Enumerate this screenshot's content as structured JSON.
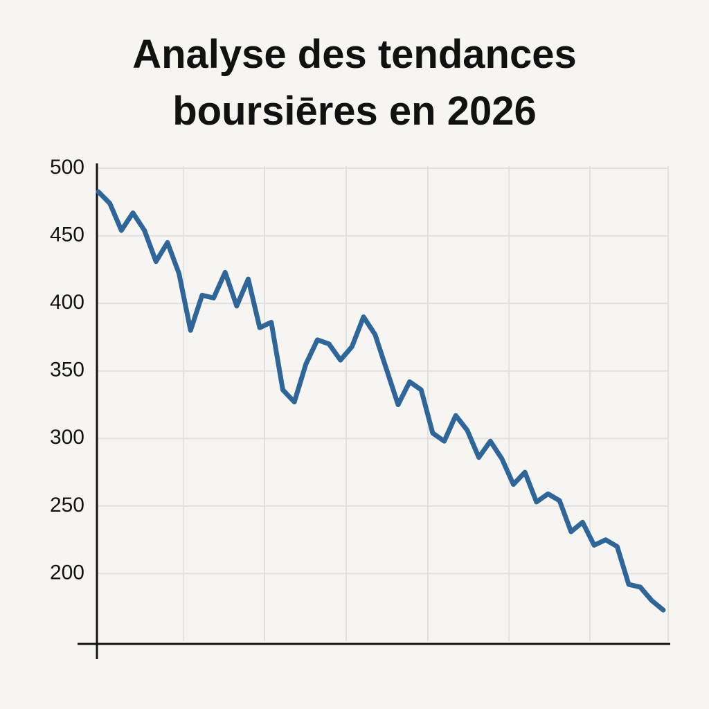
{
  "chart_data": {
    "type": "line",
    "title": "Analyse des tendances boursiēres en 2026",
    "series": [
      {
        "color": "#2f6699",
        "values": [
          482.6,
          474,
          454,
          467,
          454,
          431,
          445,
          422,
          380,
          406,
          404,
          423,
          398,
          418,
          382,
          386,
          336,
          327,
          355,
          373,
          370,
          358,
          368,
          390,
          377,
          351,
          325,
          342,
          336,
          304,
          298,
          317,
          306,
          286,
          298,
          285,
          266,
          275,
          253,
          259,
          254,
          231,
          238,
          221,
          225,
          220,
          192,
          190,
          180,
          173
        ]
      }
    ],
    "ylim": [
      150,
      500
    ],
    "yticks": [
      200,
      250,
      300,
      350,
      400,
      450,
      500
    ],
    "grid": true
  }
}
